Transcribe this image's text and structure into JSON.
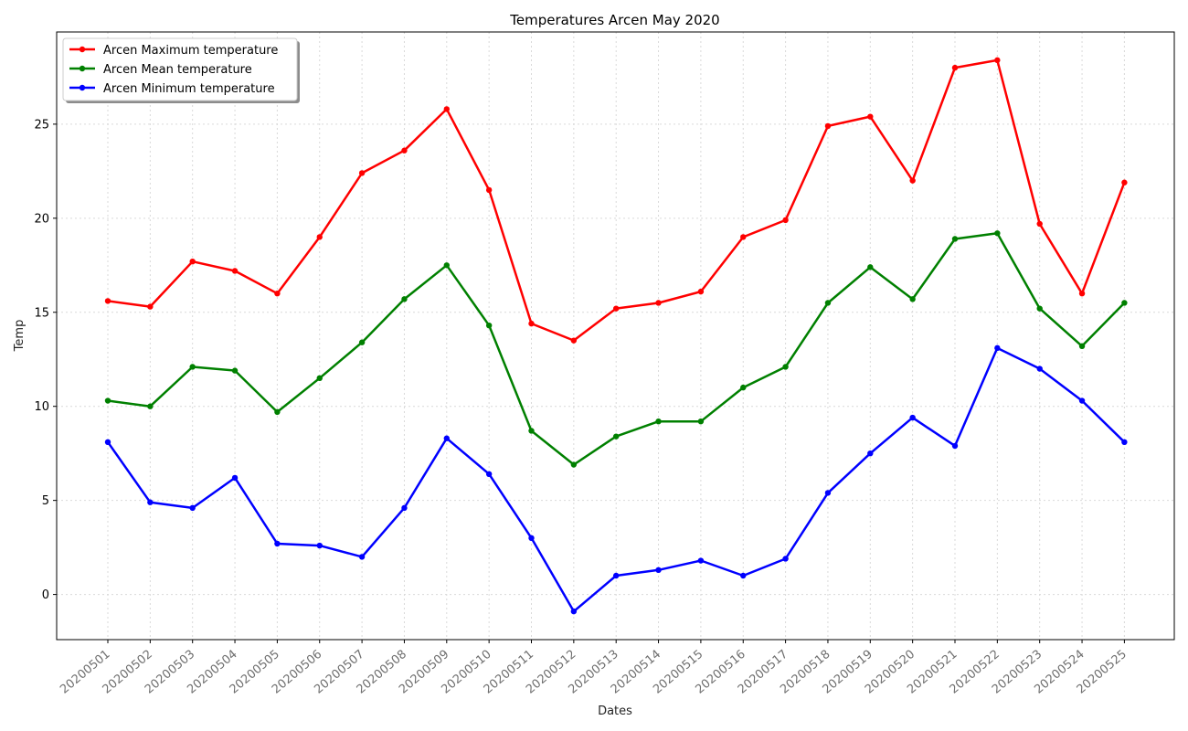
{
  "chart_data": {
    "type": "line",
    "title": "Temperatures Arcen May 2020",
    "xlabel": "Dates",
    "ylabel": "Temp",
    "x": [
      "20200501",
      "20200502",
      "20200503",
      "20200504",
      "20200505",
      "20200506",
      "20200507",
      "20200508",
      "20200509",
      "20200510",
      "20200511",
      "20200512",
      "20200513",
      "20200514",
      "20200515",
      "20200516",
      "20200517",
      "20200518",
      "20200519",
      "20200520",
      "20200521",
      "20200522",
      "20200523",
      "20200524",
      "20200525"
    ],
    "yticks": [
      0,
      5,
      10,
      15,
      20,
      25
    ],
    "ylim": [
      -2.4,
      29.9
    ],
    "grid": true,
    "legend_position": "top-left",
    "series": [
      {
        "name": "Arcen Maximum temperature",
        "color": "#ff0000",
        "values": [
          15.6,
          15.3,
          17.7,
          17.2,
          16.0,
          19.0,
          22.4,
          23.6,
          25.8,
          21.5,
          14.4,
          13.5,
          15.2,
          15.5,
          16.1,
          19.0,
          19.9,
          24.9,
          25.4,
          22.0,
          28.0,
          28.4,
          19.7,
          16.0,
          21.9
        ]
      },
      {
        "name": "Arcen Mean temperature",
        "color": "#008000",
        "values": [
          10.3,
          10.0,
          12.1,
          11.9,
          9.7,
          11.5,
          13.4,
          15.7,
          17.5,
          14.3,
          8.7,
          6.9,
          8.4,
          9.2,
          9.2,
          11.0,
          12.1,
          15.5,
          17.4,
          15.7,
          18.9,
          19.2,
          15.2,
          13.2,
          15.5
        ]
      },
      {
        "name": "Arcen Minimum temperature",
        "color": "#0000ff",
        "values": [
          8.1,
          4.9,
          4.6,
          6.2,
          2.7,
          2.6,
          2.0,
          4.6,
          8.3,
          6.4,
          3.0,
          -0.9,
          1.0,
          1.3,
          1.8,
          1.0,
          1.9,
          5.4,
          7.5,
          9.4,
          7.9,
          13.1,
          12.0,
          10.3,
          8.1
        ]
      }
    ]
  }
}
